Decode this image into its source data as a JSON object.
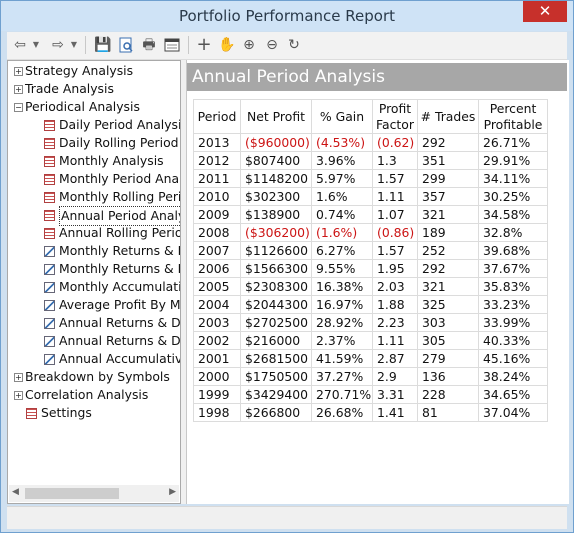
{
  "window": {
    "title": "Portfolio Performance Report",
    "close_glyph": "✕"
  },
  "toolbar": {
    "back_glyph": "⇦",
    "forward_glyph": "⇨",
    "dropdown_glyph": "▼",
    "save_glyph": "💾",
    "print_glyph": "🖶",
    "cross_glyph": "+",
    "hand_glyph": "✋",
    "zoomin_glyph": "⊕",
    "zoomout_glyph": "⊖",
    "refresh_glyph": "↻"
  },
  "tree": {
    "items": [
      {
        "label": "Strategy Analysis",
        "level": 0,
        "icon": "expand",
        "sign": "+"
      },
      {
        "label": "Trade Analysis",
        "level": 0,
        "icon": "expand",
        "sign": "+"
      },
      {
        "label": "Periodical Analysis",
        "level": 0,
        "icon": "expand",
        "sign": "−"
      },
      {
        "label": "Daily Period Analysis",
        "level": 1,
        "icon": "grid"
      },
      {
        "label": "Daily Rolling Period Analysis",
        "level": 1,
        "icon": "grid"
      },
      {
        "label": "Monthly Analysis",
        "level": 1,
        "icon": "grid"
      },
      {
        "label": "Monthly Period Analysis",
        "level": 1,
        "icon": "grid"
      },
      {
        "label": "Monthly Rolling Period Analysis",
        "level": 1,
        "icon": "grid"
      },
      {
        "label": "Annual Period Analysis",
        "level": 1,
        "icon": "grid",
        "selected": true
      },
      {
        "label": "Annual Rolling Period Analysis",
        "level": 1,
        "icon": "grid"
      },
      {
        "label": "Monthly Returns & Drawdowns",
        "level": 1,
        "icon": "chart"
      },
      {
        "label": "Monthly Returns & Drawdowns",
        "level": 1,
        "icon": "chart"
      },
      {
        "label": "Monthly Accumulative",
        "level": 1,
        "icon": "chart"
      },
      {
        "label": "Average Profit By Month",
        "level": 1,
        "icon": "chart"
      },
      {
        "label": "Annual Returns & Drawdowns",
        "level": 1,
        "icon": "chart"
      },
      {
        "label": "Annual Returns & Drawdowns",
        "level": 1,
        "icon": "chart"
      },
      {
        "label": "Annual Accumulative",
        "level": 1,
        "icon": "chart"
      },
      {
        "label": "Breakdown by Symbols",
        "level": 0,
        "icon": "expand",
        "sign": "+"
      },
      {
        "label": "Correlation Analysis",
        "level": 0,
        "icon": "expand",
        "sign": "+"
      },
      {
        "label": "Settings",
        "level": 0,
        "icon": "grid"
      }
    ],
    "scroll_left_glyph": "◀",
    "scroll_right_glyph": "▶"
  },
  "main": {
    "title": "Annual Period Analysis",
    "columns": [
      "Period",
      "Net Profit",
      "% Gain",
      "Profit Factor",
      "# Trades",
      "Percent Profitable"
    ],
    "rows": [
      {
        "period": "2013",
        "net": "($960000)",
        "gain": "(4.53%)",
        "pf": "(0.62)",
        "trades": "292",
        "pct": "26.71%",
        "neg": true
      },
      {
        "period": "2012",
        "net": "$807400",
        "gain": "3.96%",
        "pf": "1.3",
        "trades": "351",
        "pct": "29.91%"
      },
      {
        "period": "2011",
        "net": "$1148200",
        "gain": "5.97%",
        "pf": "1.57",
        "trades": "299",
        "pct": "34.11%"
      },
      {
        "period": "2010",
        "net": "$302300",
        "gain": "1.6%",
        "pf": "1.11",
        "trades": "357",
        "pct": "30.25%"
      },
      {
        "period": "2009",
        "net": "$138900",
        "gain": "0.74%",
        "pf": "1.07",
        "trades": "321",
        "pct": "34.58%"
      },
      {
        "period": "2008",
        "net": "($306200)",
        "gain": "(1.6%)",
        "pf": "(0.86)",
        "trades": "189",
        "pct": "32.8%",
        "neg": true
      },
      {
        "period": "2007",
        "net": "$1126600",
        "gain": "6.27%",
        "pf": "1.57",
        "trades": "252",
        "pct": "39.68%"
      },
      {
        "period": "2006",
        "net": "$1566300",
        "gain": "9.55%",
        "pf": "1.95",
        "trades": "292",
        "pct": "37.67%"
      },
      {
        "period": "2005",
        "net": "$2308300",
        "gain": "16.38%",
        "pf": "2.03",
        "trades": "321",
        "pct": "35.83%"
      },
      {
        "period": "2004",
        "net": "$2044300",
        "gain": "16.97%",
        "pf": "1.88",
        "trades": "325",
        "pct": "33.23%"
      },
      {
        "period": "2003",
        "net": "$2702500",
        "gain": "28.92%",
        "pf": "2.23",
        "trades": "303",
        "pct": "33.99%"
      },
      {
        "period": "2002",
        "net": "$216000",
        "gain": "2.37%",
        "pf": "1.11",
        "trades": "305",
        "pct": "40.33%"
      },
      {
        "period": "2001",
        "net": "$2681500",
        "gain": "41.59%",
        "pf": "2.87",
        "trades": "279",
        "pct": "45.16%"
      },
      {
        "period": "2000",
        "net": "$1750500",
        "gain": "37.27%",
        "pf": "2.9",
        "trades": "136",
        "pct": "38.24%"
      },
      {
        "period": "1999",
        "net": "$3429400",
        "gain": "270.71%",
        "pf": "3.31",
        "trades": "228",
        "pct": "34.65%"
      },
      {
        "period": "1998",
        "net": "$266800",
        "gain": "26.68%",
        "pf": "1.41",
        "trades": "81",
        "pct": "37.04%"
      }
    ]
  },
  "colors": {
    "negative": "#cc1414",
    "header_bg": "#a7a7a7",
    "close_bg": "#c7302b"
  }
}
